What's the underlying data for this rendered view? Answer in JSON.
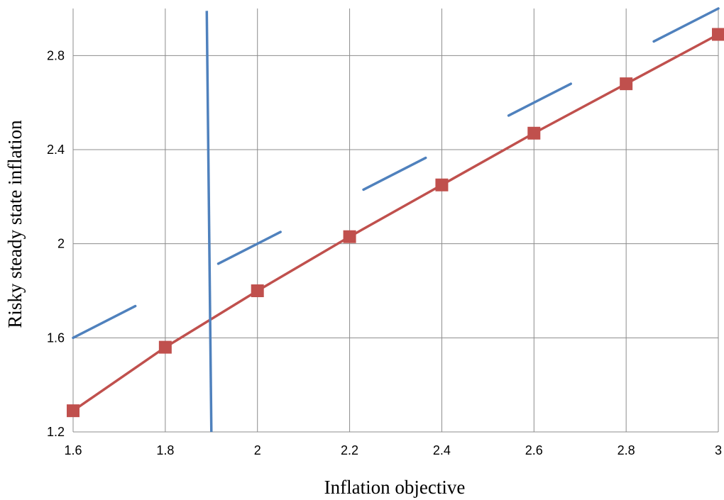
{
  "chart_data": {
    "type": "line",
    "title": "",
    "xlabel": "Inflation objective",
    "ylabel": "Risky steady state inflation",
    "xlim": [
      1.6,
      3.0
    ],
    "ylim": [
      1.2,
      3.0
    ],
    "grid": true,
    "legend": "none",
    "x_ticks": [
      "1.6",
      "1.8",
      "2",
      "2.2",
      "2.4",
      "2.6",
      "2.8",
      "3"
    ],
    "y_ticks": [
      "1.2",
      "1.6",
      "2",
      "2.4",
      "2.8"
    ],
    "series": [
      {
        "color": "#c0504d",
        "marker": "square",
        "x": [
          1.6,
          1.8,
          2.0,
          2.2,
          2.4,
          2.6,
          2.8,
          3.0
        ],
        "y": [
          1.29,
          1.56,
          1.8,
          2.03,
          2.25,
          2.47,
          2.68,
          2.89
        ]
      },
      {
        "color": "#4f81bd",
        "marker": "none",
        "x": [
          1.89,
          1.9
        ],
        "y": [
          2.99,
          1.2
        ]
      },
      {
        "color": "#4f81bd",
        "marker": "none",
        "style": "dashed-diagonal",
        "segments": [
          [
            [
              1.6,
              1.6
            ],
            [
              1.735,
              1.735
            ]
          ],
          [
            [
              1.915,
              1.915
            ],
            [
              2.05,
              2.05
            ]
          ],
          [
            [
              2.23,
              2.23
            ],
            [
              2.365,
              2.365
            ]
          ],
          [
            [
              2.545,
              2.545
            ],
            [
              2.68,
              2.68
            ]
          ],
          [
            [
              2.86,
              2.86
            ],
            [
              3.0,
              3.0
            ]
          ]
        ]
      }
    ]
  }
}
